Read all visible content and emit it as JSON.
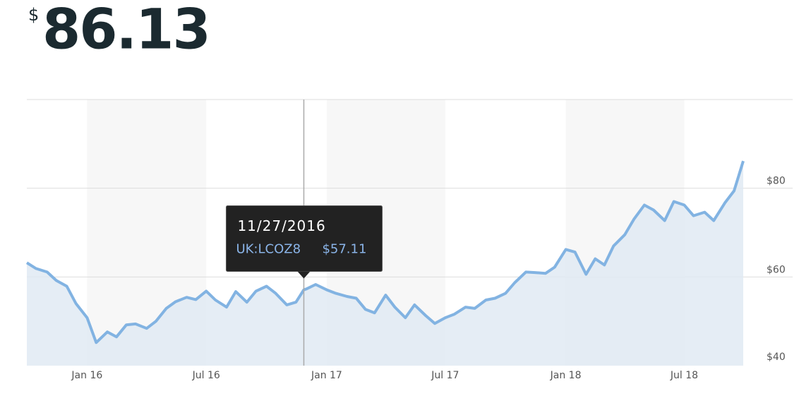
{
  "price": {
    "symbol": "$",
    "amount": 86.13
  },
  "chart_data": {
    "type": "area",
    "x": [
      "2015-10-01",
      "2015-10-15",
      "2015-11-01",
      "2015-11-15",
      "2015-12-01",
      "2015-12-15",
      "2016-01-01",
      "2016-01-15",
      "2016-02-01",
      "2016-02-15",
      "2016-03-01",
      "2016-03-15",
      "2016-04-01",
      "2016-04-15",
      "2016-05-01",
      "2016-05-15",
      "2016-06-01",
      "2016-06-15",
      "2016-07-01",
      "2016-07-15",
      "2016-08-01",
      "2016-08-15",
      "2016-09-01",
      "2016-09-15",
      "2016-10-01",
      "2016-10-15",
      "2016-11-01",
      "2016-11-15",
      "2016-11-27",
      "2016-12-01",
      "2016-12-15",
      "2017-01-01",
      "2017-01-15",
      "2017-02-01",
      "2017-02-15",
      "2017-03-01",
      "2017-03-15",
      "2017-04-01",
      "2017-04-15",
      "2017-05-01",
      "2017-05-15",
      "2017-06-01",
      "2017-06-15",
      "2017-07-01",
      "2017-07-15",
      "2017-08-01",
      "2017-08-15",
      "2017-09-01",
      "2017-09-15",
      "2017-10-01",
      "2017-10-15",
      "2017-11-01",
      "2017-11-15",
      "2017-12-01",
      "2017-12-15",
      "2018-01-01",
      "2018-01-15",
      "2018-02-01",
      "2018-02-15",
      "2018-03-01",
      "2018-03-15",
      "2018-04-01",
      "2018-04-15",
      "2018-05-01",
      "2018-05-15",
      "2018-06-01",
      "2018-06-15",
      "2018-07-01",
      "2018-07-15",
      "2018-08-01",
      "2018-08-15",
      "2018-09-01",
      "2018-09-15",
      "2018-09-29"
    ],
    "series": [
      {
        "name": "UK:LCOZ8",
        "color": "#82b3e2",
        "fill": "#e0eaf3",
        "values": [
          63.2,
          61.9,
          61.1,
          59.2,
          57.9,
          54,
          50.8,
          45.2,
          47.6,
          46.5,
          49.2,
          49.4,
          48.4,
          50,
          52.9,
          54.4,
          55.4,
          54.9,
          56.8,
          54.8,
          53.2,
          56.7,
          54.3,
          56.8,
          57.9,
          56.3,
          53.7,
          54.3,
          57.11,
          57.3,
          58.3,
          57.1,
          56.3,
          55.6,
          55.2,
          52.7,
          51.9,
          55.9,
          53.2,
          50.8,
          53.7,
          51.3,
          49.5,
          50.8,
          51.6,
          53.2,
          52.9,
          54.8,
          55.2,
          56.3,
          58.7,
          61.1,
          61,
          60.8,
          62.2,
          66.2,
          65.6,
          60.6,
          64.1,
          62.7,
          67,
          69.5,
          73,
          76.2,
          75.1,
          72.7,
          77,
          76.2,
          73.8,
          74.6,
          72.7,
          76.7,
          79.4,
          86.13
        ]
      }
    ],
    "xlim": [
      "2015-10-01",
      "2018-09-29"
    ],
    "xticks": [
      {
        "value": "2016-01-01",
        "label": "Jan 16"
      },
      {
        "value": "2016-07-01",
        "label": "Jul 16"
      },
      {
        "value": "2017-01-01",
        "label": "Jan 17"
      },
      {
        "value": "2017-07-01",
        "label": "Jul 17"
      },
      {
        "value": "2018-01-01",
        "label": "Jan 18"
      },
      {
        "value": "2018-07-01",
        "label": "Jul 18"
      }
    ],
    "ylim": [
      40,
      100
    ],
    "yticks": [
      {
        "value": 40,
        "label": "$40"
      },
      {
        "value": 60,
        "label": "$60"
      },
      {
        "value": 80,
        "label": "$80"
      }
    ],
    "grid": true,
    "tooltip": {
      "x": "2016-11-27",
      "label": "11/27/2016",
      "value": 57.11,
      "value_label": "$57.11"
    }
  }
}
